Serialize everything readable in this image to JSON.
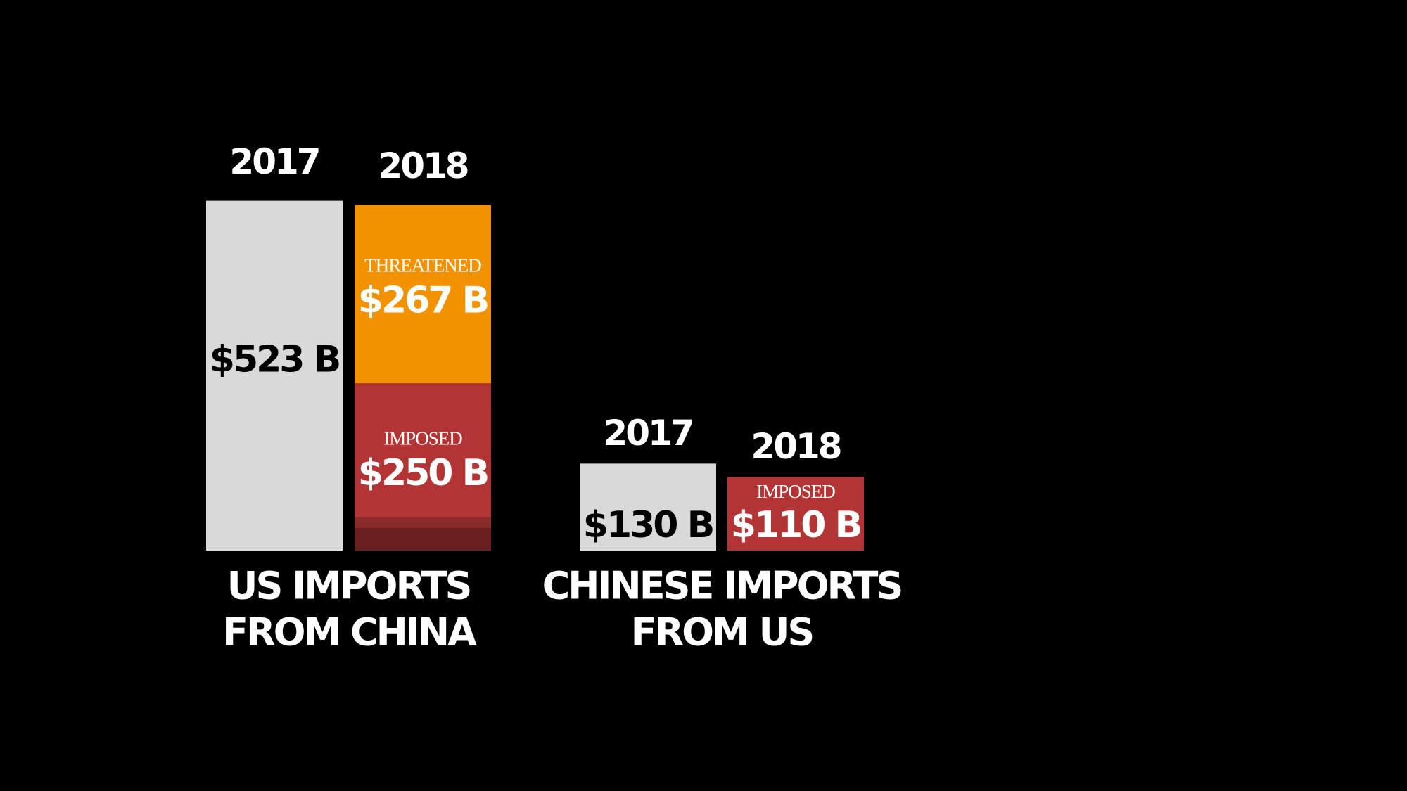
{
  "chart_data": {
    "type": "bar",
    "value_unit": "B",
    "groups": [
      {
        "label": [
          "US IMPORTS",
          "FROM CHINA"
        ],
        "bars": [
          {
            "year": "2017",
            "segments": [
              {
                "value": 523,
                "value_label": "$523 B",
                "color": "#d9d9d9",
                "label_color": "#000000"
              }
            ]
          },
          {
            "year": "2018",
            "segments": [
              {
                "name": "IMPOSED",
                "value": 250,
                "value_label": "$250 B",
                "color": "#b23434",
                "label_color": "#ffffff"
              },
              {
                "name": "THREATENED",
                "value": 267,
                "value_label": "$267 B",
                "color": "#f39200",
                "label_color": "#ffffff"
              }
            ]
          }
        ]
      },
      {
        "label": [
          "CHINESE IMPORTS",
          "FROM US"
        ],
        "bars": [
          {
            "year": "2017",
            "segments": [
              {
                "value": 130,
                "value_label": "$130 B",
                "color": "#d9d9d9",
                "label_color": "#000000"
              }
            ]
          },
          {
            "year": "2018",
            "segments": [
              {
                "name": "IMPOSED",
                "value": 110,
                "value_label": "$110 B",
                "color": "#b23434",
                "label_color": "#ffffff"
              }
            ]
          }
        ]
      }
    ]
  }
}
